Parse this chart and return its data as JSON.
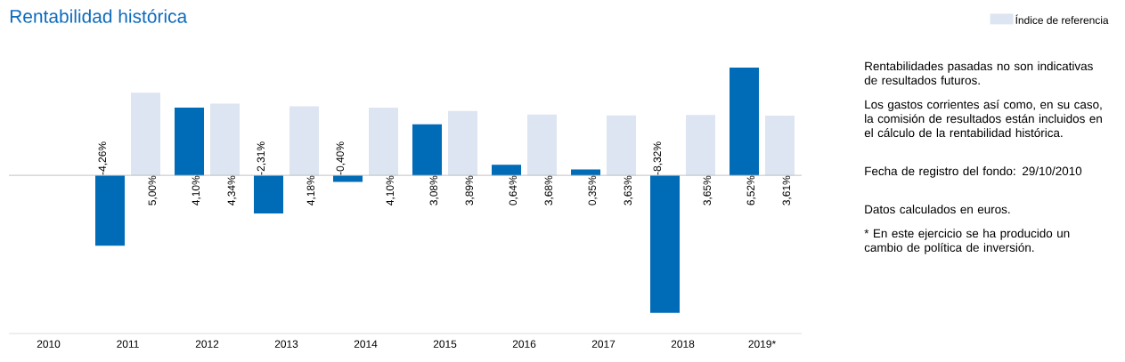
{
  "chart_data": {
    "type": "bar",
    "title": "Rentabilidad histórica",
    "categories": [
      "2010",
      "2011",
      "2012",
      "2013",
      "2014",
      "2015",
      "2016",
      "2017",
      "2018",
      "2019*"
    ],
    "series": [
      {
        "color": "#006bb6",
        "values": [
          null,
          -4.26,
          4.1,
          -2.31,
          -0.4,
          3.08,
          0.64,
          0.35,
          -8.32,
          6.52
        ],
        "value_labels": [
          null,
          "-4,26%",
          "4,10%",
          "-2,31%",
          "-0,40%",
          "3,08%",
          "0,64%",
          "0,35%",
          "-8,32%",
          "6,52%"
        ]
      },
      {
        "name": "Índice de referencia",
        "color": "#dde5f2",
        "values": [
          null,
          5.0,
          4.34,
          4.18,
          4.1,
          3.89,
          3.68,
          3.63,
          3.65,
          3.61
        ],
        "value_labels": [
          null,
          "5,00%",
          "4,34%",
          "4,18%",
          "4,10%",
          "3,89%",
          "3,68%",
          "3,63%",
          "3,65%",
          "3,61%"
        ]
      }
    ],
    "legend": "top right",
    "annotations": [
      "Rentabilidades pasadas no son indicativas de resultados futuros.",
      "Los gastos corrientes así como, en su caso, la comisión de resultados están incluidos en el cálculo de la rentabilidad histórica.",
      "Fecha de registro del fondo: 29/10/2010",
      "Datos calculados en euros.",
      "* En este ejercicio se ha producido un cambio de política de inversión."
    ]
  }
}
